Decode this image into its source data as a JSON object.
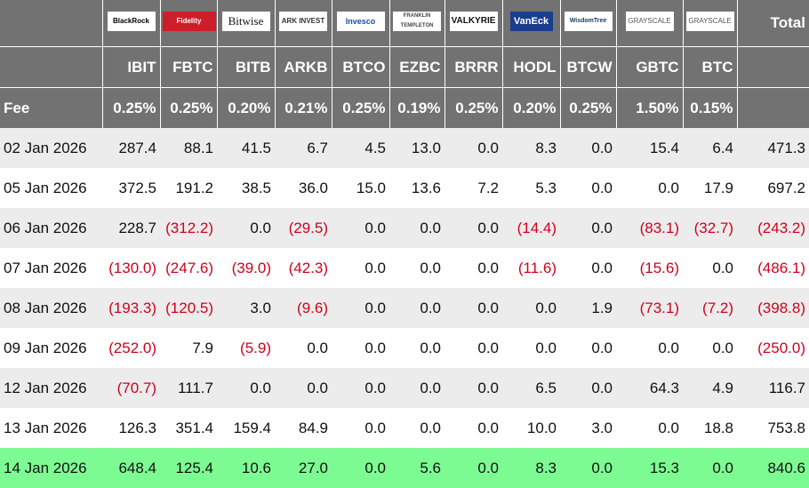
{
  "header": {
    "logos": [
      "BlackRock",
      "Fidelity",
      "Bitwise",
      "ARK INVEST",
      "Invesco",
      "FRANKLIN TEMPLETON",
      "VALKYRIE",
      "VanEck",
      "WisdomTree",
      "GRAYSCALE",
      "GRAYSCALE"
    ],
    "total_label": "Total",
    "tickers": [
      "IBIT",
      "FBTC",
      "BITB",
      "ARKB",
      "BTCO",
      "EZBC",
      "BRRR",
      "HODL",
      "BTCW",
      "GBTC",
      "BTC"
    ],
    "fee_label": "Fee",
    "fees": [
      "0.25%",
      "0.25%",
      "0.20%",
      "0.21%",
      "0.25%",
      "0.19%",
      "0.25%",
      "0.20%",
      "0.25%",
      "1.50%",
      "0.15%"
    ]
  },
  "table": {
    "rows": [
      {
        "date": "02 Jan 2026",
        "values": [
          "287.4",
          "88.1",
          "41.5",
          "6.7",
          "4.5",
          "13.0",
          "0.0",
          "8.3",
          "0.0",
          "15.4",
          "6.4"
        ],
        "total": "471.3"
      },
      {
        "date": "05 Jan 2026",
        "values": [
          "372.5",
          "191.2",
          "38.5",
          "36.0",
          "15.0",
          "13.6",
          "7.2",
          "5.3",
          "0.0",
          "0.0",
          "17.9"
        ],
        "total": "697.2"
      },
      {
        "date": "06 Jan 2026",
        "values": [
          "228.7",
          "(312.2)",
          "0.0",
          "(29.5)",
          "0.0",
          "0.0",
          "0.0",
          "(14.4)",
          "0.0",
          "(83.1)",
          "(32.7)"
        ],
        "total": "(243.2)"
      },
      {
        "date": "07 Jan 2026",
        "values": [
          "(130.0)",
          "(247.6)",
          "(39.0)",
          "(42.3)",
          "0.0",
          "0.0",
          "0.0",
          "(11.6)",
          "0.0",
          "(15.6)",
          "0.0"
        ],
        "total": "(486.1)"
      },
      {
        "date": "08 Jan 2026",
        "values": [
          "(193.3)",
          "(120.5)",
          "3.0",
          "(9.6)",
          "0.0",
          "0.0",
          "0.0",
          "0.0",
          "1.9",
          "(73.1)",
          "(7.2)"
        ],
        "total": "(398.8)"
      },
      {
        "date": "09 Jan 2026",
        "values": [
          "(252.0)",
          "7.9",
          "(5.9)",
          "0.0",
          "0.0",
          "0.0",
          "0.0",
          "0.0",
          "0.0",
          "0.0",
          "0.0"
        ],
        "total": "(250.0)"
      },
      {
        "date": "12 Jan 2026",
        "values": [
          "(70.7)",
          "111.7",
          "0.0",
          "0.0",
          "0.0",
          "0.0",
          "0.0",
          "6.5",
          "0.0",
          "64.3",
          "4.9"
        ],
        "total": "116.7"
      },
      {
        "date": "13 Jan 2026",
        "values": [
          "126.3",
          "351.4",
          "159.4",
          "84.9",
          "0.0",
          "0.0",
          "0.0",
          "10.0",
          "3.0",
          "0.0",
          "18.8"
        ],
        "total": "753.8"
      },
      {
        "date": "14 Jan 2026",
        "values": [
          "648.4",
          "125.4",
          "10.6",
          "27.0",
          "0.0",
          "5.6",
          "0.0",
          "8.3",
          "0.0",
          "15.3",
          "0.0"
        ],
        "total": "840.6"
      }
    ]
  }
}
